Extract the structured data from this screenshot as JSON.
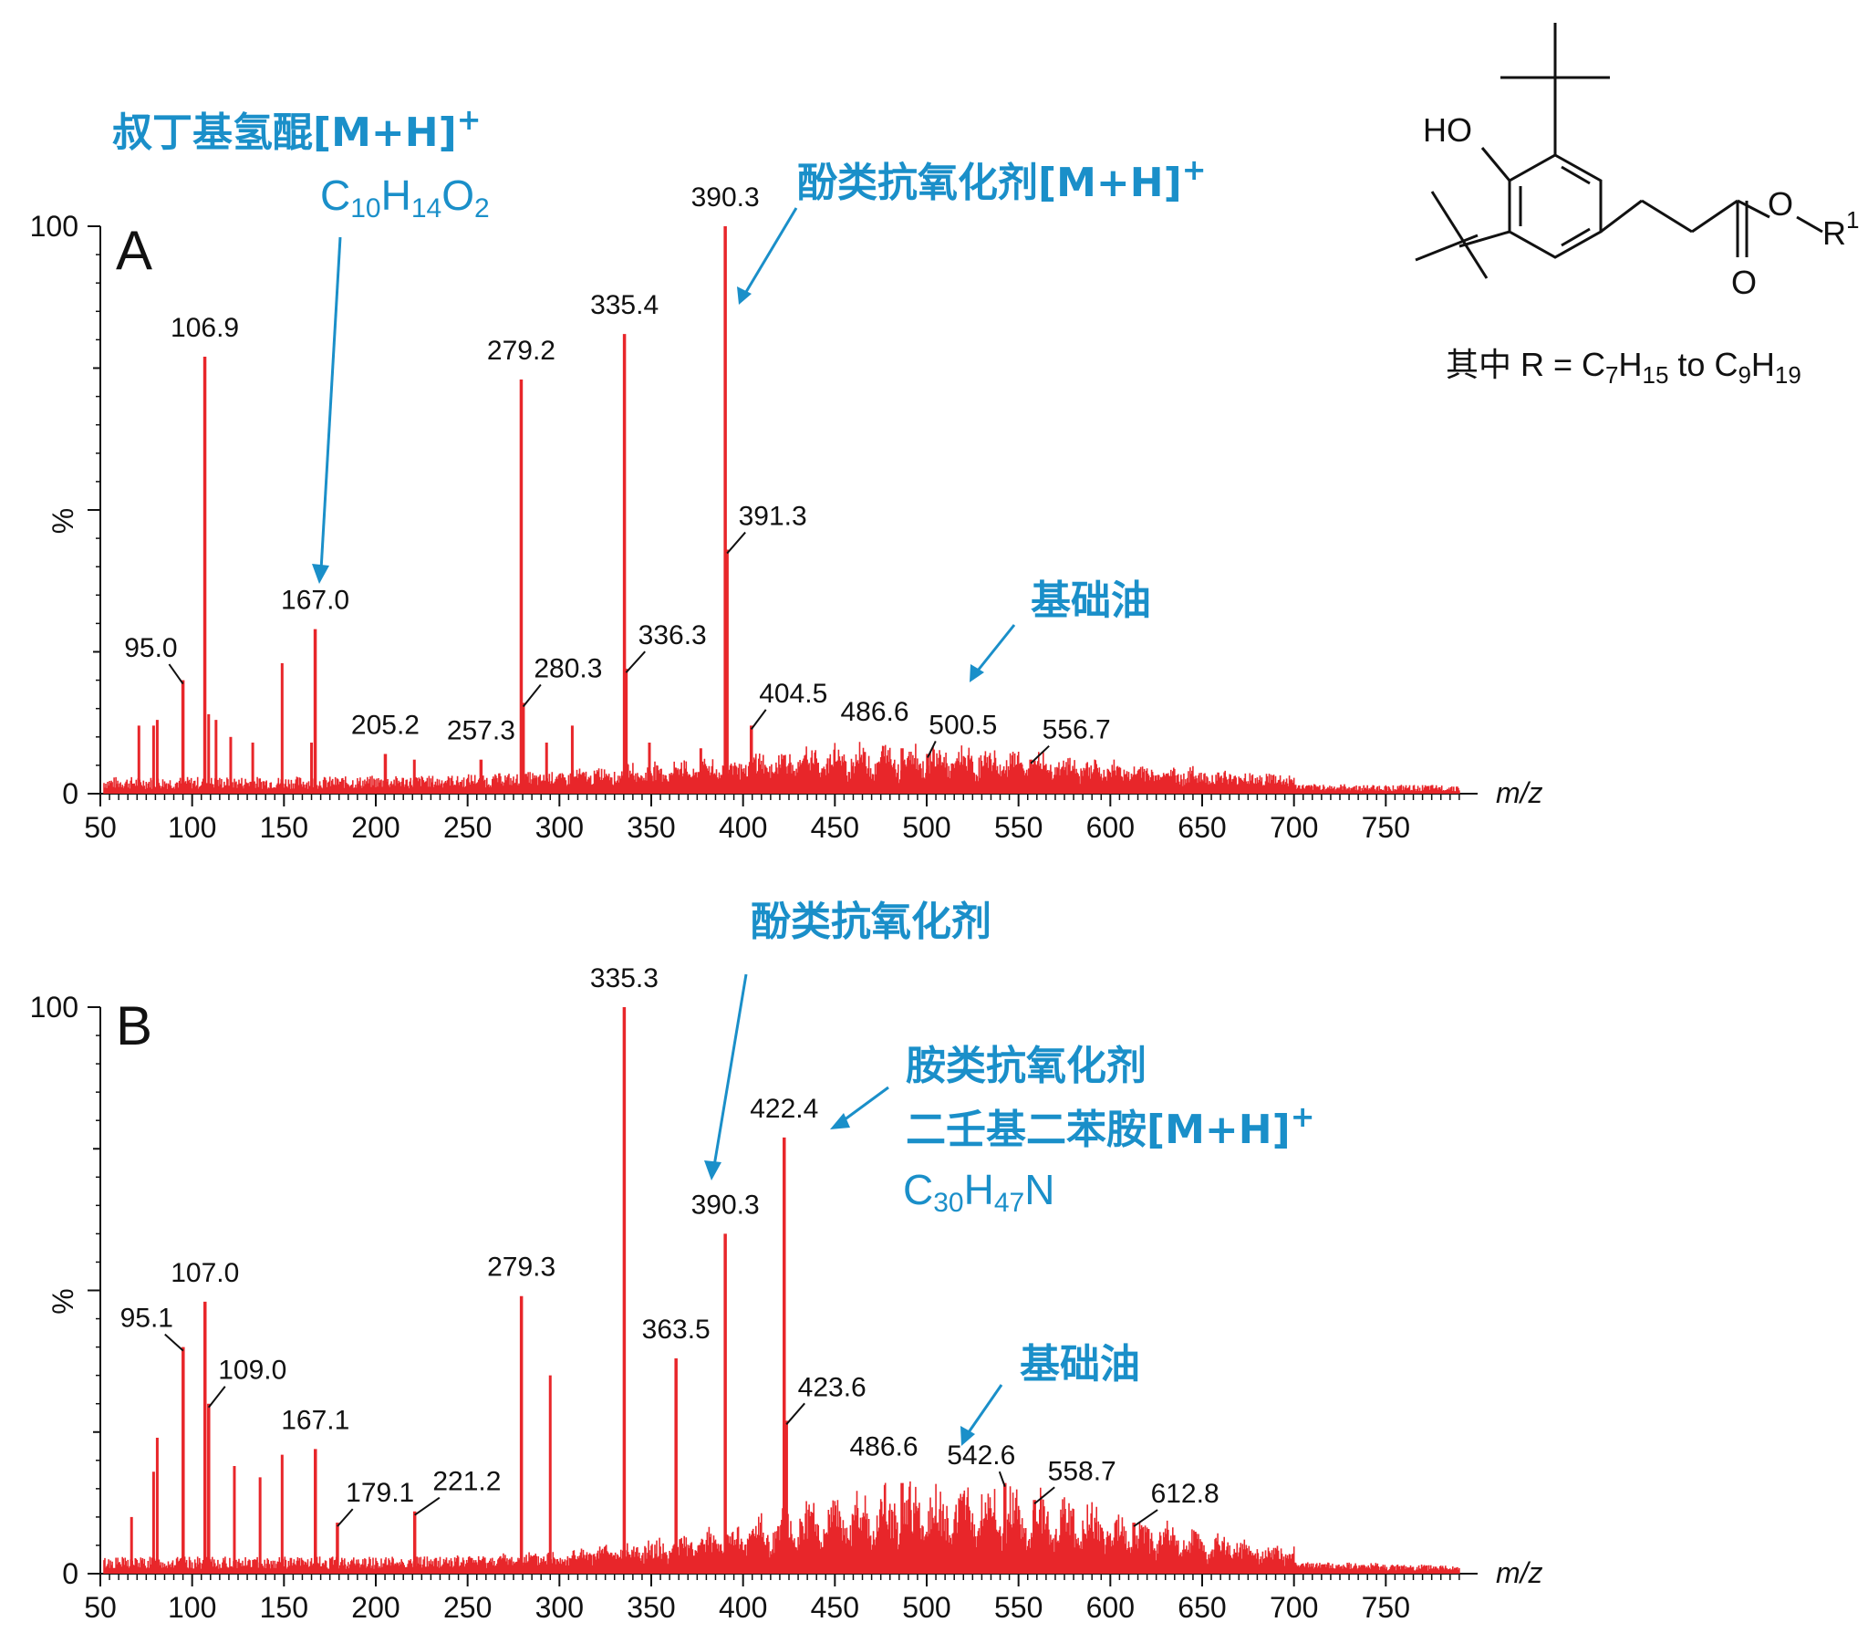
{
  "chart_data": [
    {
      "type": "line",
      "panel": "A",
      "xlabel": "m/z",
      "ylabel": "%",
      "xlim": [
        50,
        800
      ],
      "ylim": [
        0,
        100
      ],
      "xticks": [
        "50",
        "100",
        "150",
        "200",
        "250",
        "300",
        "350",
        "400",
        "450",
        "500",
        "550",
        "600",
        "650",
        "700",
        "750"
      ],
      "yticks": [
        "0",
        "100"
      ],
      "labeled_peaks": [
        {
          "x": 95.0,
          "y": 20,
          "label": "95.0"
        },
        {
          "x": 106.9,
          "y": 77,
          "label": "106.9"
        },
        {
          "x": 167.0,
          "y": 29,
          "label": "167.0"
        },
        {
          "x": 205.2,
          "y": 7,
          "label": "205.2"
        },
        {
          "x": 257.3,
          "y": 6,
          "label": "257.3"
        },
        {
          "x": 279.2,
          "y": 73,
          "label": "279.2"
        },
        {
          "x": 280.3,
          "y": 16,
          "label": "280.3"
        },
        {
          "x": 335.4,
          "y": 81,
          "label": "335.4"
        },
        {
          "x": 336.3,
          "y": 22,
          "label": "336.3"
        },
        {
          "x": 390.3,
          "y": 100,
          "label": "390.3"
        },
        {
          "x": 391.3,
          "y": 43,
          "label": "391.3"
        },
        {
          "x": 404.5,
          "y": 12,
          "label": "404.5"
        },
        {
          "x": 486.6,
          "y": 8,
          "label": "486.6"
        },
        {
          "x": 500.5,
          "y": 7,
          "label": "500.5"
        },
        {
          "x": 556.7,
          "y": 6,
          "label": "556.7"
        }
      ],
      "minor_peaks": [
        {
          "x": 71,
          "y": 12
        },
        {
          "x": 79,
          "y": 12
        },
        {
          "x": 81,
          "y": 13
        },
        {
          "x": 109,
          "y": 14
        },
        {
          "x": 113,
          "y": 13
        },
        {
          "x": 121,
          "y": 10
        },
        {
          "x": 133,
          "y": 9
        },
        {
          "x": 149,
          "y": 23
        },
        {
          "x": 165,
          "y": 9
        },
        {
          "x": 221,
          "y": 6
        },
        {
          "x": 293,
          "y": 9
        },
        {
          "x": 307,
          "y": 12
        },
        {
          "x": 349,
          "y": 9
        },
        {
          "x": 377,
          "y": 8
        }
      ],
      "annotations": [
        {
          "text": "叔丁基氢醌[M+H]",
          "sup": "+",
          "formula": "C10H14O2",
          "points_to": 167.0
        },
        {
          "text": "酚类抗氧化剂[M+H]",
          "sup": "+",
          "points_to": 390.3
        },
        {
          "text": "基础油",
          "points_to": 500
        }
      ]
    },
    {
      "type": "line",
      "panel": "B",
      "xlabel": "m/z",
      "ylabel": "%",
      "xlim": [
        50,
        800
      ],
      "ylim": [
        0,
        100
      ],
      "xticks": [
        "50",
        "100",
        "150",
        "200",
        "250",
        "300",
        "350",
        "400",
        "450",
        "500",
        "550",
        "600",
        "650",
        "700",
        "750"
      ],
      "yticks": [
        "0",
        "100"
      ],
      "labeled_peaks": [
        {
          "x": 95.1,
          "y": 40,
          "label": "95.1"
        },
        {
          "x": 107.0,
          "y": 48,
          "label": "107.0"
        },
        {
          "x": 109.0,
          "y": 30,
          "label": "109.0"
        },
        {
          "x": 167.1,
          "y": 22,
          "label": "167.1"
        },
        {
          "x": 179.1,
          "y": 9,
          "label": "179.1"
        },
        {
          "x": 221.2,
          "y": 11,
          "label": "221.2"
        },
        {
          "x": 279.3,
          "y": 49,
          "label": "279.3"
        },
        {
          "x": 335.3,
          "y": 100,
          "label": "335.3"
        },
        {
          "x": 363.5,
          "y": 38,
          "label": "363.5"
        },
        {
          "x": 390.3,
          "y": 60,
          "label": "390.3"
        },
        {
          "x": 422.4,
          "y": 77,
          "label": "422.4"
        },
        {
          "x": 423.6,
          "y": 27,
          "label": "423.6"
        },
        {
          "x": 486.6,
          "y": 16,
          "label": "486.6"
        },
        {
          "x": 542.6,
          "y": 16,
          "label": "542.6"
        },
        {
          "x": 558.7,
          "y": 13,
          "label": "558.7"
        },
        {
          "x": 612.8,
          "y": 9,
          "label": "612.8"
        }
      ],
      "minor_peaks": [
        {
          "x": 81,
          "y": 24
        },
        {
          "x": 79,
          "y": 18
        },
        {
          "x": 123,
          "y": 19
        },
        {
          "x": 137,
          "y": 17
        },
        {
          "x": 149,
          "y": 21
        },
        {
          "x": 295,
          "y": 35
        },
        {
          "x": 67,
          "y": 10
        }
      ],
      "annotations": [
        {
          "text": "酚类抗氧化剂",
          "points_to": 390.3
        },
        {
          "text": "胺类抗氧化剂",
          "points_to": 422.4
        },
        {
          "text": "二壬基二苯胺[M+H]",
          "sup": "+",
          "formula": "C30H47N"
        },
        {
          "text": "基础油",
          "points_to": 510
        }
      ]
    }
  ],
  "structure": {
    "ho_label": "HO",
    "o_label": "O",
    "carbonyl_o_label": "O",
    "r_label": "R",
    "r_sup": "1",
    "caption_prefix": "其中 R = C",
    "caption_parts": [
      "其中 R = C",
      "7",
      "H",
      "15",
      " to C",
      "9",
      "H",
      "19"
    ]
  },
  "colors": {
    "spectrum": "#e8262a",
    "annotation": "#1a8fc9",
    "axis": "#111111"
  }
}
